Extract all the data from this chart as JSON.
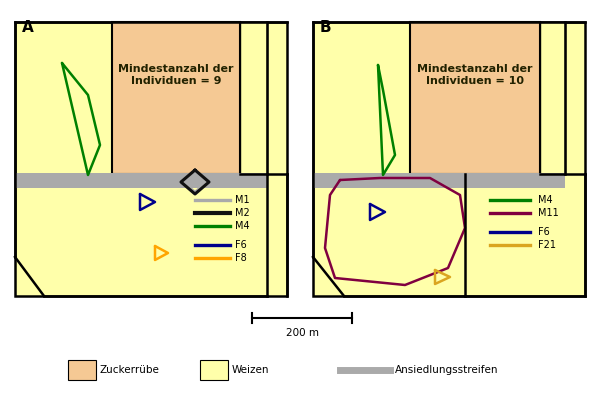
{
  "fig_width": 6.0,
  "fig_height": 3.98,
  "bg_color": "#ffffff",
  "wheat_color": "#FFFFAA",
  "sugarbeet_color": "#F5C994",
  "strip_color": "#AAAAAA",
  "border_color": "#000000",
  "panel_A": {
    "label": "A",
    "annotation": "Mindestanzahl der\nIndividuen = 9"
  },
  "panel_B": {
    "label": "B",
    "annotation": "Mindestanzahl der\nIndividuen = 10"
  },
  "legend_A": {
    "items": [
      {
        "label": "M1",
        "color": "#AAAAAA",
        "lw": 2.0
      },
      {
        "label": "M2",
        "color": "#111111",
        "lw": 2.5
      },
      {
        "label": "M4",
        "color": "#008000",
        "lw": 2.0
      },
      {
        "label": "F6",
        "color": "#00008B",
        "lw": 2.0
      },
      {
        "label": "F8",
        "color": "#FFA500",
        "lw": 2.0
      }
    ]
  },
  "legend_B": {
    "items": [
      {
        "label": "M4",
        "color": "#008000",
        "lw": 2.0
      },
      {
        "label": "M11",
        "color": "#800040",
        "lw": 2.0
      },
      {
        "label": "F6",
        "color": "#00008B",
        "lw": 2.0
      },
      {
        "label": "F21",
        "color": "#DAA520",
        "lw": 2.0
      }
    ]
  },
  "scalebar_label": "200 m",
  "bottom_legend": {
    "zuckerruebe_color": "#F5C994",
    "weizen_color": "#FFFFAA",
    "strip_color": "#AAAAAA",
    "zuckerruebe_label": "Zuckerrübe",
    "weizen_label": "Weizen",
    "strip_label": "Ansiedlungsstreifen"
  }
}
